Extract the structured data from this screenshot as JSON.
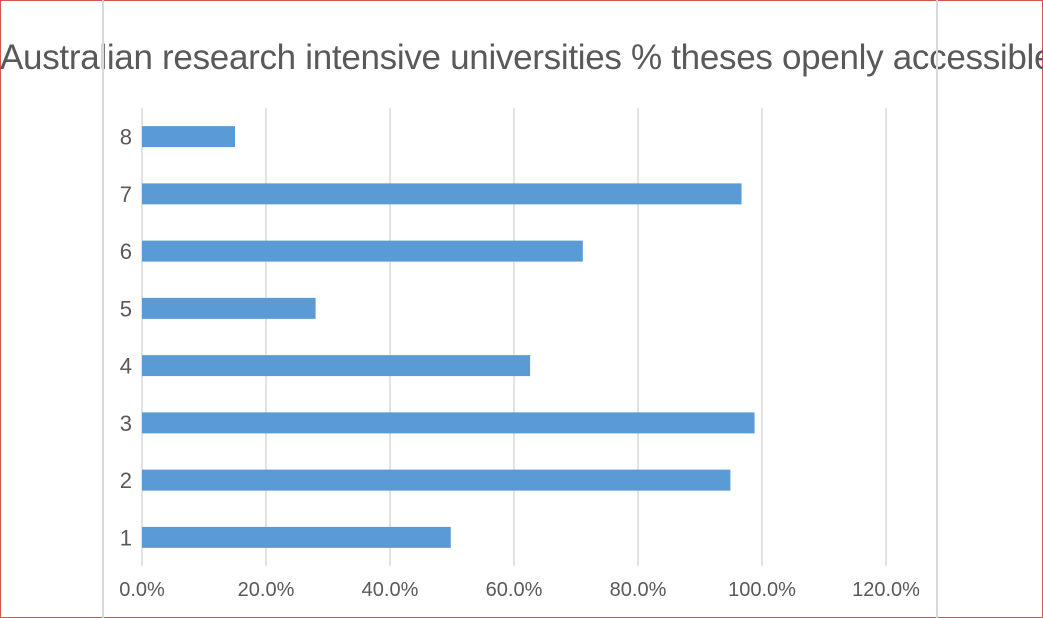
{
  "chart_data": {
    "type": "bar",
    "orientation": "horizontal",
    "title": "Australian research intensive universities % theses openly accessible",
    "xlabel": "",
    "ylabel": "",
    "categories": [
      "1",
      "2",
      "3",
      "4",
      "5",
      "6",
      "7",
      "8"
    ],
    "values": [
      0.498,
      0.949,
      0.988,
      0.626,
      0.28,
      0.711,
      0.967,
      0.15
    ],
    "xlim": [
      0,
      1.2
    ],
    "x_ticks": [
      "0.0%",
      "20.0%",
      "40.0%",
      "60.0%",
      "80.0%",
      "100.0%",
      "120.0%"
    ],
    "grid": true,
    "legend": "none",
    "bar_color": "#5b9bd5",
    "grid_color": "#d9d9d9"
  }
}
